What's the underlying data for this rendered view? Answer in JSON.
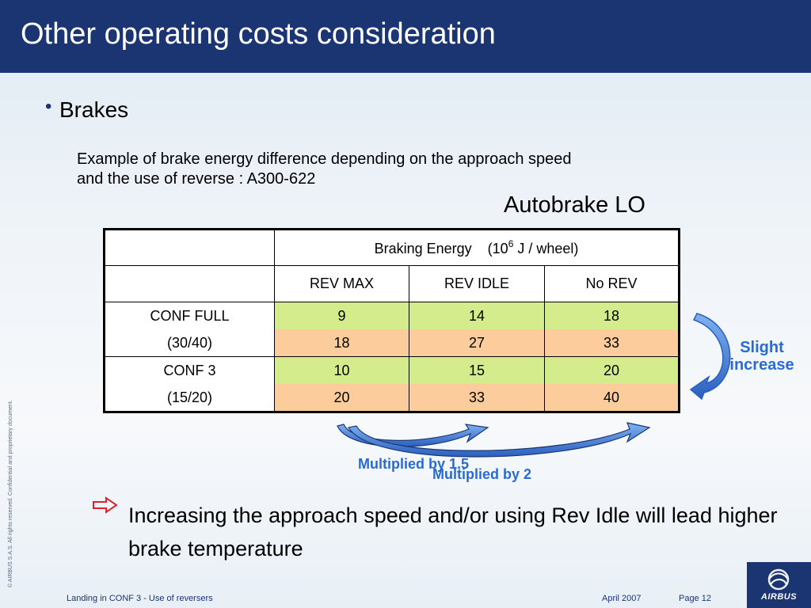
{
  "header": {
    "title": "Other operating costs consideration"
  },
  "bullet": {
    "text": "Brakes"
  },
  "description": "Example of brake energy  difference depending on the approach speed and the use of reverse : A300-622",
  "autobrake_label": "Autobrake LO",
  "table": {
    "header_main": "Braking Energy",
    "header_unit_prefix": "(10",
    "header_unit_exp": "6",
    "header_unit_suffix": " J / wheel)",
    "columns": [
      "REV MAX",
      "REV IDLE",
      "No REV"
    ],
    "groups": [
      {
        "conf": "CONF FULL",
        "speeds": "(30/40)",
        "rows": [
          [
            "9",
            "14",
            "18"
          ],
          [
            "18",
            "27",
            "33"
          ]
        ]
      },
      {
        "conf": "CONF 3",
        "speeds": "(15/20)",
        "rows": [
          [
            "10",
            "15",
            "20"
          ],
          [
            "20",
            "33",
            "40"
          ]
        ]
      }
    ]
  },
  "annotations": {
    "slight_increase_1": "Slight",
    "slight_increase_2": "increase",
    "multiplied_15": "Multiplied by 1.5",
    "multiplied_2": "Multiplied by 2"
  },
  "conclusion": "Increasing the approach speed and/or using Rev Idle will lead higher brake temperature",
  "footer": {
    "left": "Landing in CONF 3 - Use of reversers",
    "date": "April 2007",
    "page": "Page 12",
    "logo": "AIRBUS",
    "sidebar": "© AIRBUS S.A.S. All rights reserved. Confidential and proprietary document."
  },
  "colors": {
    "title_bar": "#1a3572",
    "green_cell": "#d5ec8c",
    "orange_cell": "#fccc9d",
    "annotation": "#2a6ad4"
  }
}
